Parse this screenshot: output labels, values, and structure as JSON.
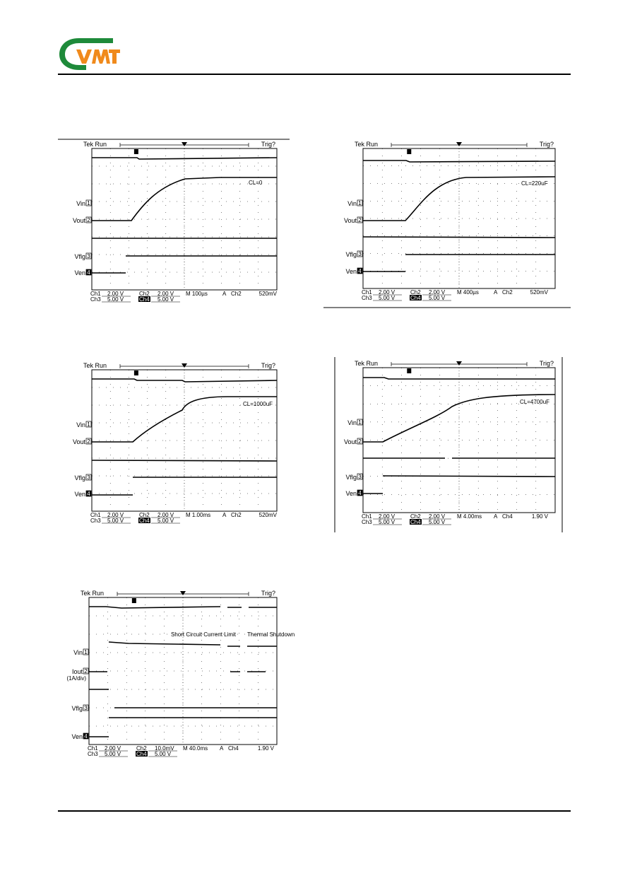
{
  "header": {
    "logo_text": "VMT",
    "logo_colors": {
      "green": "#1e8a3a",
      "orange": "#f08a1c"
    }
  },
  "scopes": [
    {
      "id": "s1",
      "top": "Tek Run",
      "trig": "Trig?",
      "channels": [
        "Vin",
        "Vout",
        "Vflg",
        "Ven"
      ],
      "channel_numbers": [
        "1",
        "2",
        "3",
        "4"
      ],
      "annotation": "CL=0",
      "bottom1": [
        "Ch1",
        "2.00 V",
        "Ch2",
        "2.00 V",
        "M 100µs",
        "A",
        "Ch2",
        "520mV"
      ],
      "bottom2": [
        "Ch3",
        "5.00 V",
        "Ch4",
        "5.00 V"
      ]
    },
    {
      "id": "s2",
      "top": "Tek Run",
      "trig": "Trig?",
      "channels": [
        "Vin",
        "Vout",
        "Vflg",
        "Ven"
      ],
      "channel_numbers": [
        "1",
        "2",
        "3",
        "4"
      ],
      "annotation": "CL=220uF",
      "bottom1": [
        "Ch1",
        "2.00 V",
        "Ch2",
        "2.00 V",
        "M 400µs",
        "A",
        "Ch2",
        "520mV"
      ],
      "bottom2": [
        "Ch3",
        "5.00 V",
        "Ch4",
        "5.00 V"
      ]
    },
    {
      "id": "s3",
      "top": "Tek Run",
      "trig": "Trig?",
      "channels": [
        "Vin",
        "Vout",
        "Vflg",
        "Ven"
      ],
      "channel_numbers": [
        "1",
        "2",
        "3",
        "4"
      ],
      "annotation": "CL=1000uF",
      "bottom1": [
        "Ch1",
        "2.00 V",
        "Ch2",
        "2.00 V",
        "M 1.00ms",
        "A",
        "Ch2",
        "520mV"
      ],
      "bottom2": [
        "Ch3",
        "5.00 V",
        "Ch4",
        "5.00 V"
      ]
    },
    {
      "id": "s4",
      "top": "Tek Run",
      "trig": "Trig?",
      "channels": [
        "Vin",
        "Vout",
        "Vflg",
        "Ven"
      ],
      "channel_numbers": [
        "1",
        "2",
        "3",
        "4"
      ],
      "annotation": "CL=4700uF",
      "bottom1": [
        "Ch1",
        "2.00 V",
        "Ch2",
        "2.00 V",
        "M 4.00ms",
        "A",
        "Ch4",
        "1.90 V"
      ],
      "bottom2": [
        "Ch3",
        "5.00 V",
        "Ch4",
        "5.00 V"
      ]
    },
    {
      "id": "s5",
      "top": "Tek Run",
      "trig": "Trig?",
      "channels": [
        "Vin",
        "Iout",
        "Vflg",
        "Ven"
      ],
      "channel_numbers": [
        "1",
        "2",
        "3",
        "4"
      ],
      "iout_sub": "(1A/div)",
      "annotation": "Short Circuit Current Limit",
      "annotation2": "Thermal Shutdown",
      "bottom1": [
        "Ch1",
        "2.00 V",
        "Ch2",
        "10.0mV",
        "M 40.0ms",
        "A",
        "Ch4",
        "1.90 V"
      ],
      "bottom2": [
        "Ch3",
        "5.00 V",
        "Ch4",
        "5.00 V"
      ]
    }
  ]
}
